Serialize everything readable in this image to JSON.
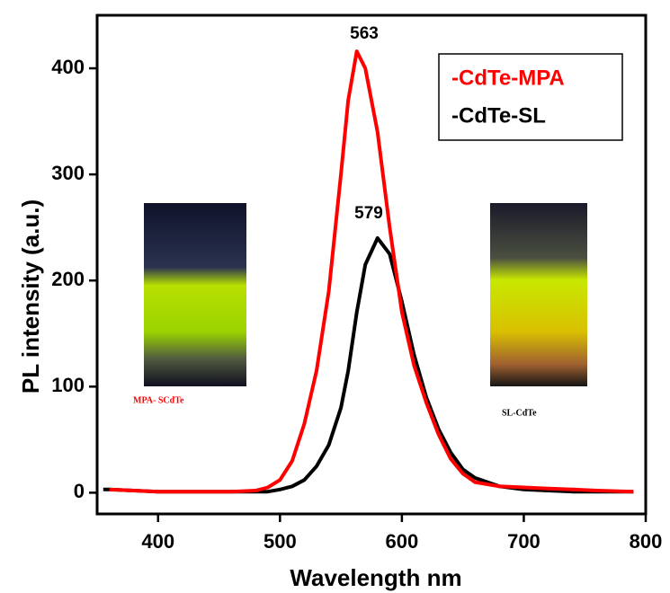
{
  "chart_data": {
    "type": "line",
    "x_label": "Wavelength nm",
    "y_label": "PL intensity (a.u.)",
    "x": [
      355,
      360,
      380,
      400,
      420,
      440,
      460,
      480,
      490,
      500,
      510,
      520,
      530,
      540,
      550,
      556,
      563,
      570,
      580,
      590,
      600,
      610,
      620,
      630,
      640,
      650,
      660,
      680,
      700,
      720,
      740,
      760,
      790
    ],
    "series": [
      {
        "name": "-CdTe-MPA",
        "color": "#ff0000",
        "values": [
          null,
          3,
          2,
          1,
          1,
          1,
          1,
          2,
          5,
          12,
          30,
          65,
          115,
          190,
          300,
          370,
          416,
          400,
          340,
          250,
          170,
          120,
          85,
          55,
          32,
          18,
          10,
          6,
          5,
          4,
          3,
          2,
          1
        ]
      },
      {
        "name": "-CdTe-SL",
        "color": "#000000",
        "values": [
          3,
          3,
          2,
          1,
          1,
          1,
          1,
          1,
          1,
          3,
          6,
          12,
          25,
          45,
          80,
          115,
          170,
          215,
          240,
          225,
          180,
          130,
          90,
          60,
          38,
          22,
          14,
          6,
          3,
          2,
          1,
          1,
          1
        ]
      }
    ],
    "annotations": [
      "563",
      "579"
    ],
    "image_labels": [
      "MPA- SCdTe",
      "SL-CdTe"
    ],
    "xlim": [
      350,
      800
    ],
    "xticks": [
      400,
      500,
      600,
      700,
      800
    ],
    "ylim": [
      -20,
      450
    ],
    "yticks": [
      0,
      100,
      200,
      300,
      400
    ],
    "legend": "upper right",
    "grid": false
  }
}
